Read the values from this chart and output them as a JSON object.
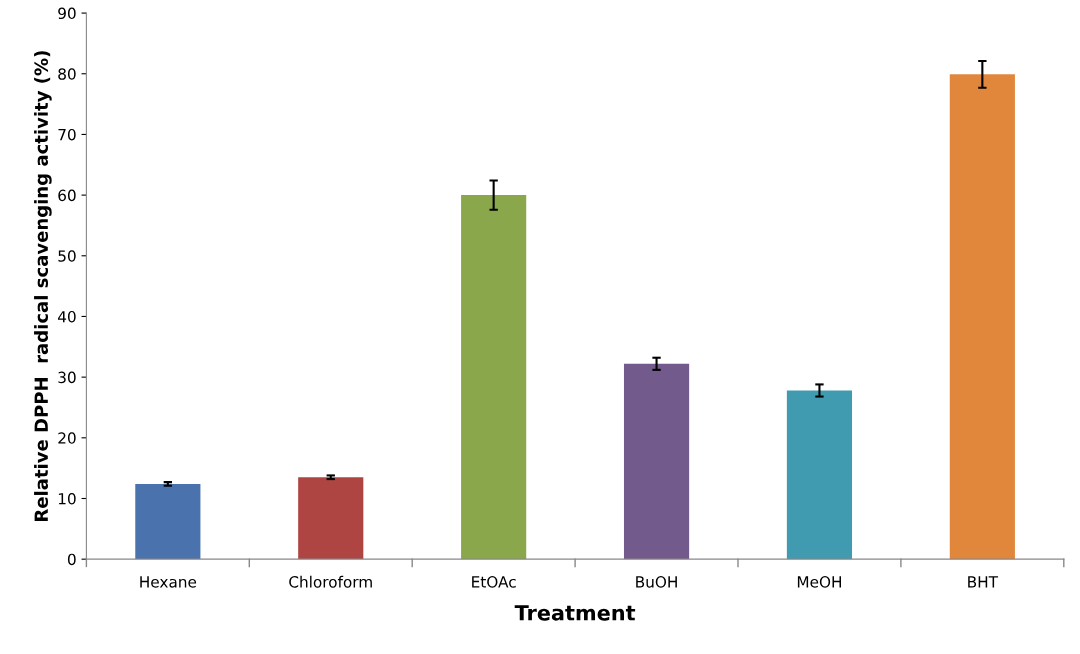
{
  "chart_data": {
    "type": "bar",
    "xlabel": "Treatment",
    "ylabel": "Relative DPPH  radical scavenging activity (%)",
    "categories": [
      "Hexane",
      "Chloroform",
      "EtOAc",
      "BuOH",
      "MeOH",
      "BHT"
    ],
    "values": [
      12.4,
      13.5,
      60.0,
      32.2,
      27.8,
      79.9
    ],
    "errors": [
      0.3,
      0.3,
      2.4,
      1.0,
      1.0,
      2.2
    ],
    "colors": [
      "#4a72ac",
      "#ae4542",
      "#8aa84b",
      "#725a8c",
      "#409bb0",
      "#e0873c"
    ],
    "ylim": [
      0,
      90
    ],
    "yticks": [
      0,
      10,
      20,
      30,
      40,
      50,
      60,
      70,
      80,
      90
    ],
    "grid": false,
    "legend": false
  }
}
